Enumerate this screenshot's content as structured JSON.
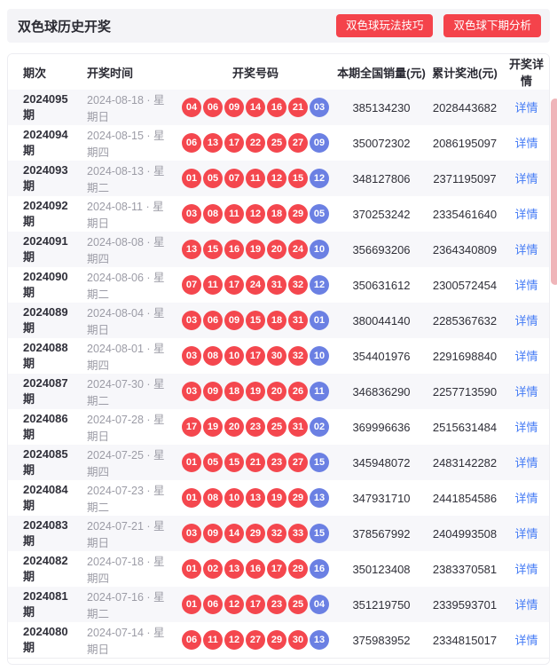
{
  "header": {
    "title": "双色球历史开奖",
    "buttons": [
      {
        "label": "双色球玩法技巧"
      },
      {
        "label": "双色球下期分析"
      }
    ]
  },
  "table": {
    "columns": [
      "期次",
      "开奖时间",
      "开奖号码",
      "本期全国销量(元)",
      "累计奖池(元)",
      "开奖详情"
    ],
    "detail_link_label": "详情",
    "rows": [
      {
        "period": "2024095期",
        "date": "2024-08-18 · 星期日",
        "red_balls": [
          "04",
          "06",
          "09",
          "14",
          "16",
          "21"
        ],
        "blue_ball": "03",
        "sales": "385134230",
        "jackpot": "2028443682"
      },
      {
        "period": "2024094期",
        "date": "2024-08-15 · 星期四",
        "red_balls": [
          "06",
          "13",
          "17",
          "22",
          "25",
          "27"
        ],
        "blue_ball": "09",
        "sales": "350072302",
        "jackpot": "2086195097"
      },
      {
        "period": "2024093期",
        "date": "2024-08-13 · 星期二",
        "red_balls": [
          "01",
          "05",
          "07",
          "11",
          "12",
          "15"
        ],
        "blue_ball": "12",
        "sales": "348127806",
        "jackpot": "2371195097"
      },
      {
        "period": "2024092期",
        "date": "2024-08-11 · 星期日",
        "red_balls": [
          "03",
          "08",
          "11",
          "12",
          "18",
          "29"
        ],
        "blue_ball": "05",
        "sales": "370253242",
        "jackpot": "2335461640"
      },
      {
        "period": "2024091期",
        "date": "2024-08-08 · 星期四",
        "red_balls": [
          "13",
          "15",
          "16",
          "19",
          "20",
          "24"
        ],
        "blue_ball": "10",
        "sales": "356693206",
        "jackpot": "2364340809"
      },
      {
        "period": "2024090期",
        "date": "2024-08-06 · 星期二",
        "red_balls": [
          "07",
          "11",
          "17",
          "24",
          "31",
          "32"
        ],
        "blue_ball": "12",
        "sales": "350631612",
        "jackpot": "2300572454"
      },
      {
        "period": "2024089期",
        "date": "2024-08-04 · 星期日",
        "red_balls": [
          "03",
          "06",
          "09",
          "15",
          "18",
          "31"
        ],
        "blue_ball": "01",
        "sales": "380044140",
        "jackpot": "2285367632"
      },
      {
        "period": "2024088期",
        "date": "2024-08-01 · 星期四",
        "red_balls": [
          "03",
          "08",
          "10",
          "17",
          "30",
          "32"
        ],
        "blue_ball": "10",
        "sales": "354401976",
        "jackpot": "2291698840"
      },
      {
        "period": "2024087期",
        "date": "2024-07-30 · 星期二",
        "red_balls": [
          "03",
          "09",
          "18",
          "19",
          "20",
          "26"
        ],
        "blue_ball": "11",
        "sales": "346836290",
        "jackpot": "2257713590"
      },
      {
        "period": "2024086期",
        "date": "2024-07-28 · 星期日",
        "red_balls": [
          "17",
          "19",
          "20",
          "23",
          "25",
          "31"
        ],
        "blue_ball": "02",
        "sales": "369996636",
        "jackpot": "2515631484"
      },
      {
        "period": "2024085期",
        "date": "2024-07-25 · 星期四",
        "red_balls": [
          "01",
          "05",
          "15",
          "21",
          "23",
          "27"
        ],
        "blue_ball": "15",
        "sales": "345948072",
        "jackpot": "2483142282"
      },
      {
        "period": "2024084期",
        "date": "2024-07-23 · 星期二",
        "red_balls": [
          "01",
          "08",
          "10",
          "13",
          "19",
          "29"
        ],
        "blue_ball": "13",
        "sales": "347931710",
        "jackpot": "2441854586"
      },
      {
        "period": "2024083期",
        "date": "2024-07-21 · 星期日",
        "red_balls": [
          "03",
          "09",
          "14",
          "29",
          "32",
          "33"
        ],
        "blue_ball": "15",
        "sales": "378567992",
        "jackpot": "2404993508"
      },
      {
        "period": "2024082期",
        "date": "2024-07-18 · 星期四",
        "red_balls": [
          "01",
          "02",
          "13",
          "16",
          "17",
          "29"
        ],
        "blue_ball": "16",
        "sales": "350123408",
        "jackpot": "2383370581"
      },
      {
        "period": "2024081期",
        "date": "2024-07-16 · 星期二",
        "red_balls": [
          "01",
          "06",
          "12",
          "17",
          "23",
          "25"
        ],
        "blue_ball": "04",
        "sales": "351219750",
        "jackpot": "2339593701"
      },
      {
        "period": "2024080期",
        "date": "2024-07-14 · 星期日",
        "red_balls": [
          "06",
          "11",
          "12",
          "27",
          "29",
          "30"
        ],
        "blue_ball": "13",
        "sales": "375983952",
        "jackpot": "2334815017"
      }
    ]
  },
  "colors": {
    "accent_red": "#f4434b",
    "red_ball": "#f4474e",
    "blue_ball": "#6b80e3",
    "detail_link": "#447bf5",
    "row_stripe": "#f7f7fa",
    "scrollbar_thumb": "#efb5b9"
  }
}
